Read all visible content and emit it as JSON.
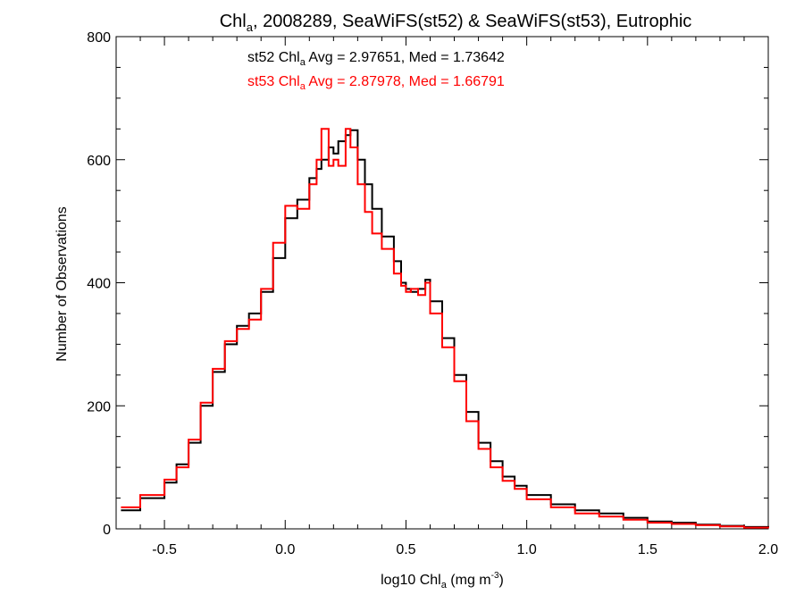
{
  "chart_data": {
    "type": "line",
    "title": {
      "prefix": "Chl",
      "sub": "a",
      "suffix": ", 2008289, SeaWiFS(st52) & SeaWiFS(st53), Eutrophic"
    },
    "xlabel": {
      "prefix": "log10 Chl",
      "sub": "a",
      "middle": " (mg m",
      "sup": "-3",
      "suffix": ")"
    },
    "ylabel": "Number of Observations",
    "xlim": [
      -0.7,
      2.0
    ],
    "ylim": [
      0,
      800
    ],
    "x_ticks": [
      -0.5,
      0.0,
      0.5,
      1.0,
      1.5,
      2.0
    ],
    "x_tick_labels": [
      "-0.5",
      "0.0",
      "0.5",
      "1.0",
      "1.5",
      "2.0"
    ],
    "y_ticks": [
      0,
      200,
      400,
      600,
      800
    ],
    "y_tick_labels": [
      "0",
      "200",
      "400",
      "600",
      "800"
    ],
    "annotations": [
      {
        "prefix": "st52 Chl",
        "sub": "a",
        "suffix": " Avg = 2.97651, Med = 1.73642",
        "color": "#000000"
      },
      {
        "prefix": "st53 Chl",
        "sub": "a",
        "suffix": " Avg = 2.87978, Med = 1.66791",
        "color": "#ff0000"
      }
    ],
    "series": [
      {
        "color": "#000000",
        "x": [
          -0.68,
          -0.6,
          -0.5,
          -0.45,
          -0.4,
          -0.35,
          -0.3,
          -0.25,
          -0.2,
          -0.15,
          -0.1,
          -0.05,
          0.0,
          0.05,
          0.1,
          0.13,
          0.15,
          0.18,
          0.2,
          0.22,
          0.25,
          0.27,
          0.3,
          0.33,
          0.36,
          0.4,
          0.45,
          0.48,
          0.5,
          0.52,
          0.55,
          0.58,
          0.6,
          0.65,
          0.7,
          0.75,
          0.8,
          0.85,
          0.9,
          0.95,
          1.0,
          1.1,
          1.2,
          1.3,
          1.4,
          1.5,
          1.6,
          1.7,
          1.8,
          1.9,
          2.0
        ],
        "y": [
          30,
          50,
          75,
          105,
          140,
          200,
          255,
          300,
          330,
          350,
          385,
          440,
          505,
          535,
          570,
          585,
          600,
          620,
          610,
          630,
          640,
          648,
          600,
          560,
          520,
          475,
          435,
          400,
          390,
          385,
          390,
          405,
          370,
          310,
          250,
          190,
          140,
          110,
          85,
          70,
          55,
          40,
          30,
          25,
          18,
          12,
          10,
          7,
          5,
          3,
          2
        ]
      },
      {
        "color": "#ff0000",
        "x": [
          -0.68,
          -0.6,
          -0.5,
          -0.45,
          -0.4,
          -0.35,
          -0.3,
          -0.25,
          -0.2,
          -0.15,
          -0.1,
          -0.05,
          0.0,
          0.05,
          0.1,
          0.13,
          0.15,
          0.18,
          0.2,
          0.22,
          0.25,
          0.27,
          0.3,
          0.33,
          0.36,
          0.4,
          0.45,
          0.48,
          0.5,
          0.52,
          0.55,
          0.58,
          0.6,
          0.65,
          0.7,
          0.75,
          0.8,
          0.85,
          0.9,
          0.95,
          1.0,
          1.1,
          1.2,
          1.3,
          1.4,
          1.5,
          1.6,
          1.7,
          1.8,
          1.9,
          2.0
        ],
        "y": [
          35,
          55,
          80,
          100,
          145,
          205,
          260,
          305,
          325,
          340,
          390,
          465,
          525,
          520,
          560,
          600,
          650,
          590,
          600,
          590,
          650,
          620,
          560,
          515,
          480,
          455,
          415,
          395,
          385,
          390,
          380,
          400,
          350,
          295,
          240,
          175,
          130,
          100,
          78,
          65,
          48,
          35,
          25,
          20,
          15,
          10,
          8,
          6,
          4,
          2,
          1
        ]
      }
    ]
  }
}
